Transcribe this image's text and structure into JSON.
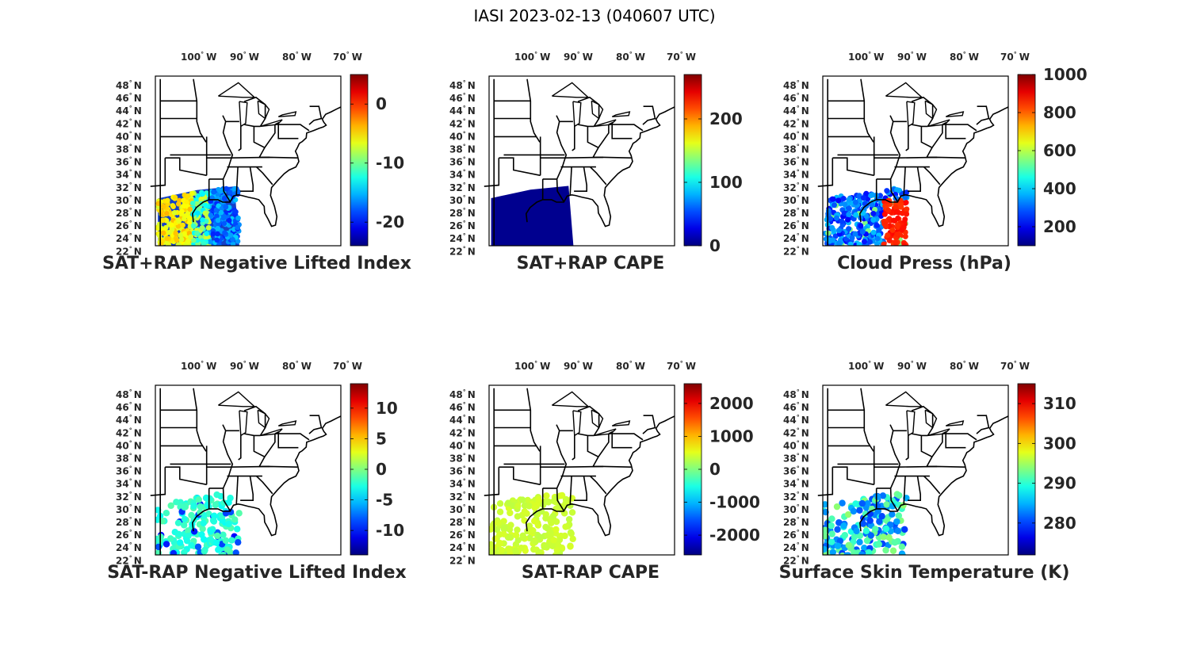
{
  "figure_title": "IASI 2023-02-13 (040607 UTC)",
  "lon_ticks": [
    {
      "deg": "100",
      "hem": "W"
    },
    {
      "deg": "90",
      "hem": "W"
    },
    {
      "deg": "80",
      "hem": "W"
    },
    {
      "deg": "70",
      "hem": "W"
    }
  ],
  "lat_ticks": [
    {
      "deg": "48",
      "hem": "N"
    },
    {
      "deg": "46",
      "hem": "N"
    },
    {
      "deg": "44",
      "hem": "N"
    },
    {
      "deg": "42",
      "hem": "N"
    },
    {
      "deg": "40",
      "hem": "N"
    },
    {
      "deg": "38",
      "hem": "N"
    },
    {
      "deg": "36",
      "hem": "N"
    },
    {
      "deg": "34",
      "hem": "N"
    },
    {
      "deg": "32",
      "hem": "N"
    },
    {
      "deg": "30",
      "hem": "N"
    },
    {
      "deg": "28",
      "hem": "N"
    },
    {
      "deg": "26",
      "hem": "N"
    },
    {
      "deg": "24",
      "hem": "N"
    },
    {
      "deg": "22",
      "hem": "N"
    }
  ],
  "colormap": "jet",
  "panels": [
    {
      "id": "sat-rap-plus-neg-lifted-index",
      "title": "SAT+RAP Negative Lifted Index",
      "colorbar": {
        "min": -24,
        "max": 5,
        "ticks": [
          "0",
          "-10",
          "-20"
        ],
        "tick_values": [
          0,
          -10,
          -20
        ]
      },
      "swath": "left-yellow-right-blue"
    },
    {
      "id": "sat-rap-plus-cape",
      "title": "SAT+RAP CAPE",
      "colorbar": {
        "min": 0,
        "max": 270,
        "ticks": [
          "0",
          "100",
          "200"
        ],
        "tick_values": [
          0,
          100,
          200
        ]
      },
      "swath": "solid-dark-blue"
    },
    {
      "id": "cloud-press",
      "title": "Cloud Press (hPa)",
      "colorbar": {
        "min": 100,
        "max": 1000,
        "ticks": [
          "200",
          "400",
          "600",
          "800",
          "1000"
        ],
        "tick_values": [
          200,
          400,
          600,
          800,
          1000
        ]
      },
      "swath": "blue-with-orange-east"
    },
    {
      "id": "sat-minus-rap-neg-lifted-index",
      "title": "SAT-RAP Negative Lifted Index",
      "colorbar": {
        "min": -14,
        "max": 14,
        "ticks": [
          "-10",
          "-5",
          "0",
          "5",
          "10"
        ],
        "tick_values": [
          -10,
          -5,
          0,
          5,
          10
        ]
      },
      "swath": "cyan-dots"
    },
    {
      "id": "sat-minus-rap-cape",
      "title": "SAT-RAP CAPE",
      "colorbar": {
        "min": -2600,
        "max": 2600,
        "ticks": [
          "-2000",
          "-1000",
          "0",
          "1000",
          "2000"
        ],
        "tick_values": [
          -2000,
          -1000,
          0,
          1000,
          2000
        ]
      },
      "swath": "green-dots"
    },
    {
      "id": "surface-skin-temperature",
      "title": "Surface Skin Temperature (K)",
      "colorbar": {
        "min": 272,
        "max": 315,
        "ticks": [
          "280",
          "290",
          "300",
          "310"
        ],
        "tick_values": [
          280,
          290,
          300,
          310
        ]
      },
      "swath": "blue-cyan-dots"
    }
  ]
}
